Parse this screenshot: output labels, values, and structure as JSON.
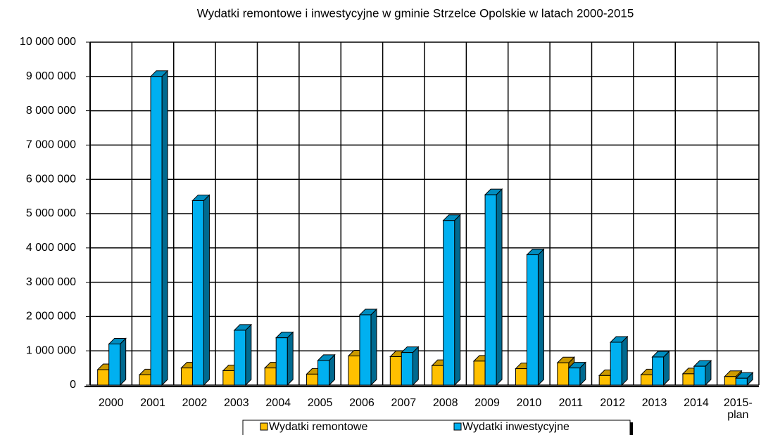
{
  "chart_data": {
    "type": "bar3d",
    "title": "Wydatki remontowe i inwestycyjne w gminie Strzelce Opolskie w latach 2000-2015",
    "categories": [
      "2000",
      "2001",
      "2002",
      "2003",
      "2004",
      "2005",
      "2006",
      "2007",
      "2008",
      "2009",
      "2010",
      "2011",
      "2012",
      "2013",
      "2014",
      "2015-\nplan"
    ],
    "series": [
      {
        "name": "Wydatki remontowe",
        "color": "#ffc000",
        "values": [
          450000,
          300000,
          500000,
          420000,
          500000,
          320000,
          850000,
          830000,
          570000,
          700000,
          480000,
          650000,
          280000,
          300000,
          330000,
          250000
        ]
      },
      {
        "name": "Wydatki inwestycyjne",
        "color": "#00b0f0",
        "values": [
          1200000,
          9000000,
          5380000,
          1600000,
          1380000,
          720000,
          2050000,
          950000,
          4800000,
          5550000,
          3800000,
          500000,
          1250000,
          820000,
          550000,
          200000
        ]
      }
    ],
    "ylim": [
      0,
      10000000
    ],
    "yticks": [
      0,
      {
        "value": 1000000,
        "label": "1 000 000"
      },
      {
        "value": 2000000,
        "label": "2 000 000"
      },
      {
        "value": 3000000,
        "label": "3 000 000"
      },
      {
        "value": 4000000,
        "label": "4 000 000"
      },
      {
        "value": 5000000,
        "label": "5 000 000"
      },
      {
        "value": 6000000,
        "label": "6 000 000"
      },
      {
        "value": 7000000,
        "label": "7 000 000"
      },
      {
        "value": 8000000,
        "label": "8 000 000"
      },
      {
        "value": 9000000,
        "label": "9 000 000"
      },
      {
        "value": 10000000,
        "label": "10 000 000"
      }
    ],
    "grid": true,
    "legend": "bottom"
  }
}
